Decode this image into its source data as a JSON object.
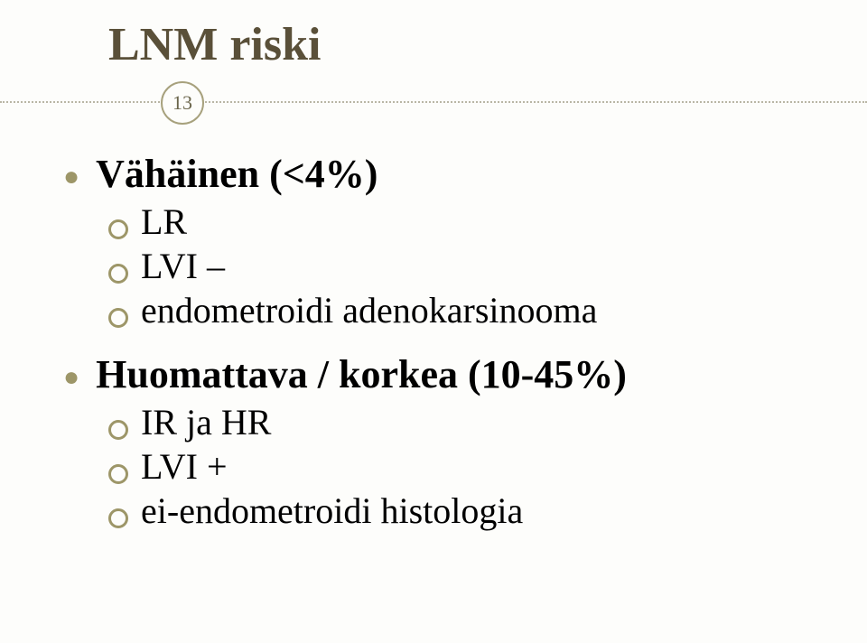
{
  "slide": {
    "title": "LNM riski",
    "page_number": "13",
    "colors": {
      "title": "#5a5039",
      "bullet_disc": "#9d9668",
      "bullet_ring": "#9d9668",
      "badge_border": "#a7a17d",
      "dotted_line": "#b9b6a5",
      "background": "#fdfdfb",
      "body_text": "#000000"
    },
    "groups": [
      {
        "heading": "Vähäinen (<4%)",
        "items": [
          "LR",
          "LVI –",
          "endometroidi adenokarsinooma"
        ]
      },
      {
        "heading": "Huomattava / korkea (10-45%)",
        "items": [
          "IR ja HR",
          "LVI +",
          "ei-endometroidi histologia"
        ]
      }
    ]
  }
}
